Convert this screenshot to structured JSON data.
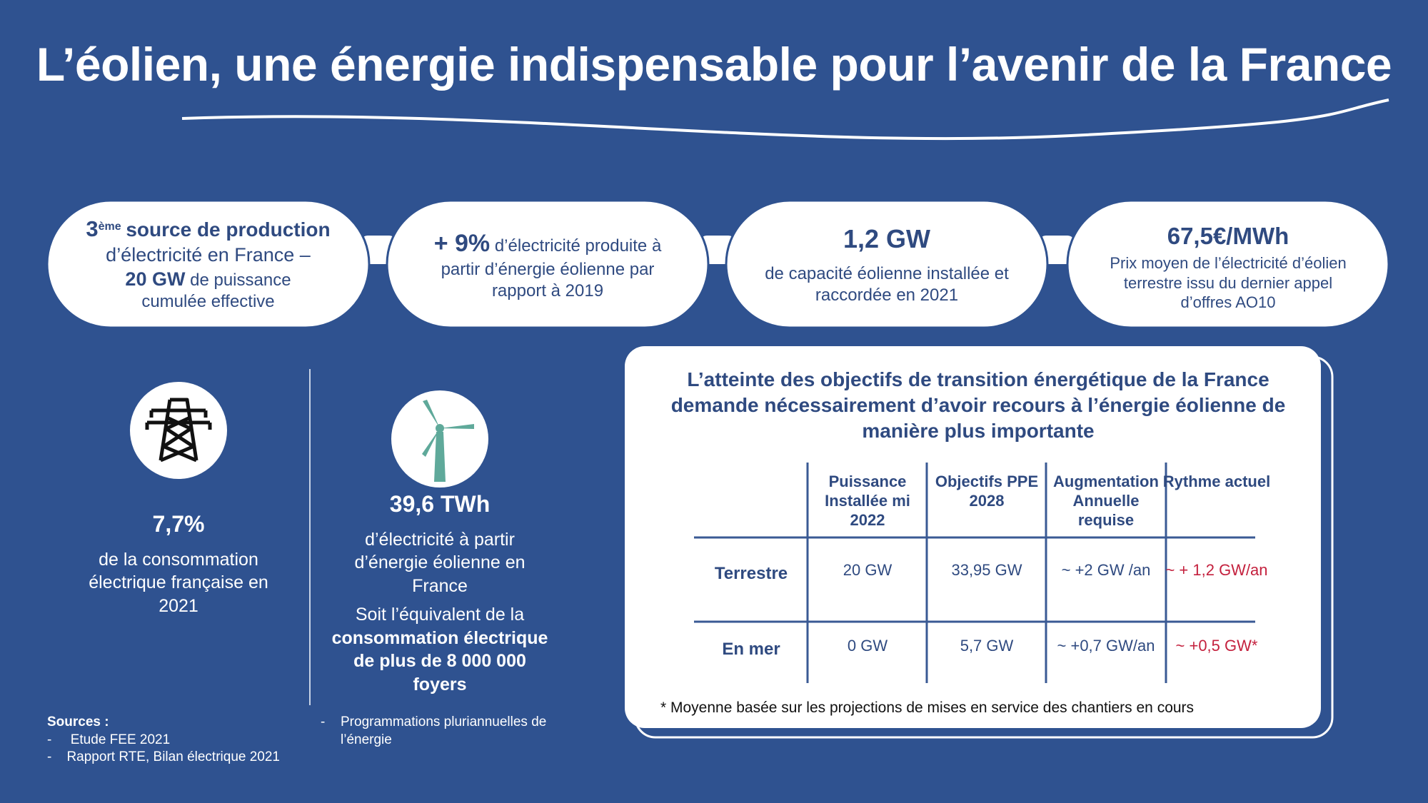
{
  "title": "L’éolien, une énergie indispensable pour l’avenir de la France",
  "highlights": [
    {
      "rank": "3",
      "rank_suffix": "ème",
      "headline": "source de production",
      "text": "d’électricité en France –",
      "figure": "20 GW",
      "text2": "de puissance cumulée effective"
    },
    {
      "figure": "+ 9%",
      "text": "d’électricité produite à partir d’énergie éolienne par rapport à 2019"
    },
    {
      "figure": "1,2 GW",
      "text": "de capacité éolienne installée et raccordée en 2021"
    },
    {
      "figure": "67,5€/MWh",
      "text": "Prix moyen de l’électricité d’éolien terrestre issu du dernier appel d’offres AO10"
    }
  ],
  "facts": [
    {
      "figure": "7,7%",
      "text": "de la consommation électrique française en 2021"
    },
    {
      "figure": "39,6 TWh",
      "text": "d’électricité à partir d’énergie éolienne en France",
      "text2": "Soit l’équivalent de la",
      "emphasis": "consommation électrique de plus de  8 000 000 foyers"
    }
  ],
  "panel": {
    "heading": "L’atteinte des objectifs de transition énergétique de la France demande nécessairement d’avoir recours à l’énergie éolienne de manière plus importante",
    "table": {
      "header": [
        "Puissance Installée mi 2022",
        "Objectifs PPE 2028",
        "Augmentation Annuelle requise",
        "Rythme actuel"
      ],
      "rows": [
        [
          "Terrestre",
          "20 GW",
          "33,95 GW",
          "~ +2 GW /an",
          "~ + 1,2 GW/an"
        ],
        [
          "En mer",
          "0 GW",
          "5,7 GW",
          "~ +0,7 GW/an",
          "~ +0,5 GW*"
        ]
      ]
    },
    "note": "* Moyenne basée sur les projections de mises en service des chantiers en cours"
  },
  "sources": {
    "label": "Sources :",
    "items": [
      "Etude FEE 2021",
      "Rapport RTE, Bilan électrique 2021",
      "Programmations pluriannuelles de l’énergie"
    ]
  }
}
